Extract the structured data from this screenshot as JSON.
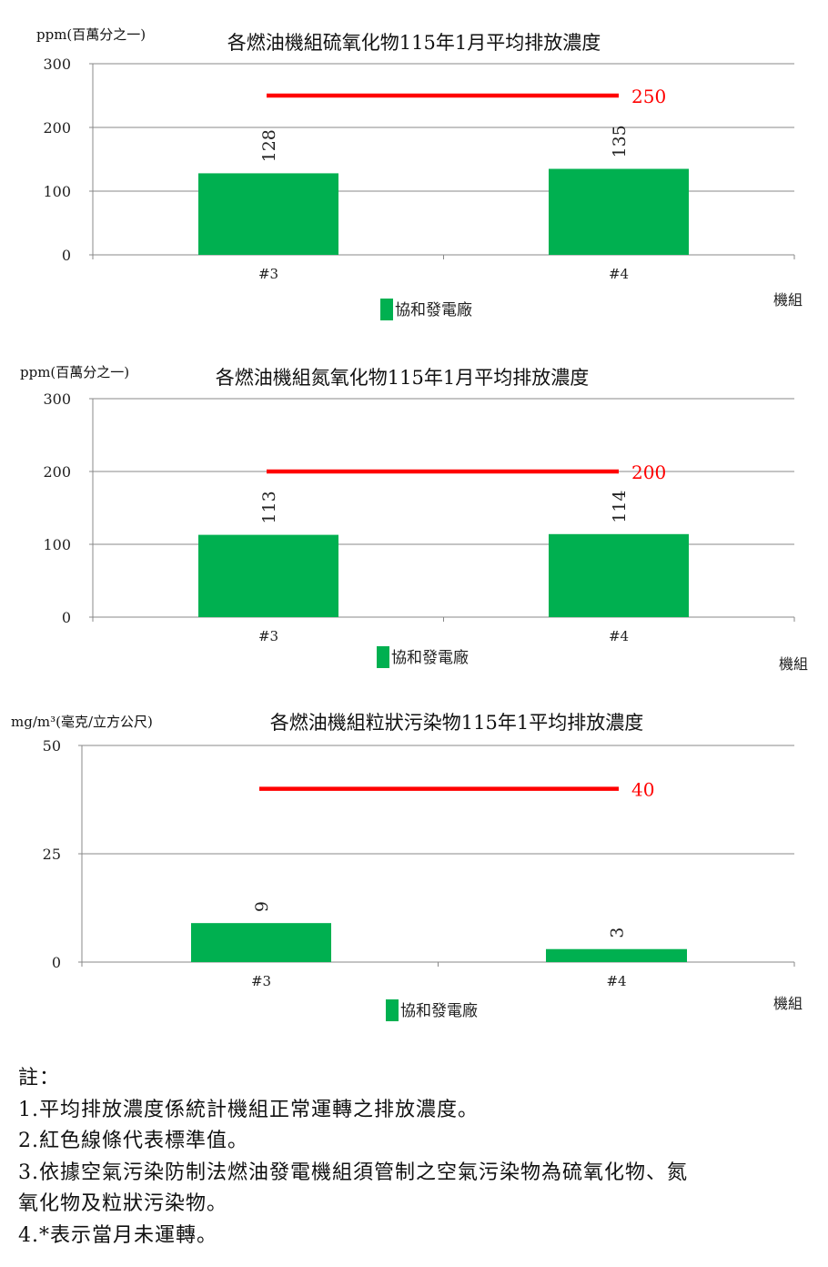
{
  "chart_data": [
    {
      "type": "bar",
      "title": "各燃油機組硫氧化物115年1月平均排放濃度",
      "ylabel": "ppm(百萬分之一)",
      "xlabel": "機組",
      "categories": [
        "#3",
        "#4"
      ],
      "series": [
        {
          "name": "協和發電廠",
          "values": [
            128,
            135
          ],
          "color": "#00b050"
        }
      ],
      "yticks": [
        0,
        100,
        200,
        300
      ],
      "ylim": [
        0,
        300
      ],
      "standard": {
        "value": 250,
        "label": "250",
        "color": "#ff0000"
      },
      "grid": true,
      "legend": "bottom"
    },
    {
      "type": "bar",
      "title": "各燃油機組氮氧化物115年1月平均排放濃度",
      "ylabel": "ppm(百萬分之一)",
      "xlabel": "機組",
      "categories": [
        "#3",
        "#4"
      ],
      "series": [
        {
          "name": "協和發電廠",
          "values": [
            113,
            114
          ],
          "color": "#00b050"
        }
      ],
      "yticks": [
        0,
        100,
        200,
        300
      ],
      "ylim": [
        0,
        300
      ],
      "standard": {
        "value": 200,
        "label": "200",
        "color": "#ff0000"
      },
      "grid": true,
      "legend": "bottom"
    },
    {
      "type": "bar",
      "title": "各燃油機組粒狀污染物115年1平均排放濃度",
      "ylabel": "mg/m³(毫克/立方公尺)",
      "xlabel": "機組",
      "categories": [
        "#3",
        "#4"
      ],
      "series": [
        {
          "name": "協和發電廠",
          "values": [
            9,
            3
          ],
          "color": "#00b050"
        }
      ],
      "yticks": [
        0,
        25,
        50
      ],
      "ylim": [
        0,
        50
      ],
      "standard": {
        "value": 40,
        "label": "40",
        "color": "#ff0000"
      },
      "grid": true,
      "legend": "bottom"
    }
  ],
  "notes": {
    "heading": "註：",
    "items": [
      "1.平均排放濃度係統計機組正常運轉之排放濃度。",
      "2.紅色線條代表標準值。",
      "3.依據空氣污染防制法燃油發電機組須管制之空氣污染物為硫氧化物、氮",
      "氧化物及粒狀污染物。",
      "4.*表示當月未運轉。"
    ]
  }
}
